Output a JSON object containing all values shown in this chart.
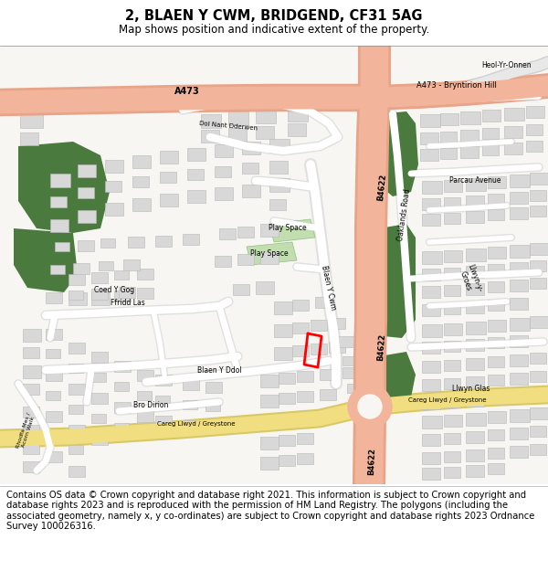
{
  "title_line1": "2, BLAEN Y CWM, BRIDGEND, CF31 5AG",
  "title_line2": "Map shows position and indicative extent of the property.",
  "footer_text": "Contains OS data © Crown copyright and database right 2021. This information is subject to Crown copyright and database rights 2023 and is reproduced with the permission of HM Land Registry. The polygons (including the associated geometry, namely x, y co-ordinates) are subject to Crown copyright and database rights 2023 Ordnance Survey 100026316.",
  "title_fontsize": 10.5,
  "subtitle_fontsize": 8.5,
  "footer_fontsize": 7.2,
  "bg_color": "#f7f6f3",
  "road_salmon": "#f2b49a",
  "road_salmon_dark": "#e8a488",
  "road_yellow": "#f0de80",
  "road_yellow_dark": "#d8c868",
  "green_dark": "#4a7a3d",
  "green_light": "#c2ddb0",
  "building_fill": "#d8d8d8",
  "building_edge": "#b8b8b8",
  "road_white": "#ffffff",
  "road_light": "#e0e0e0"
}
